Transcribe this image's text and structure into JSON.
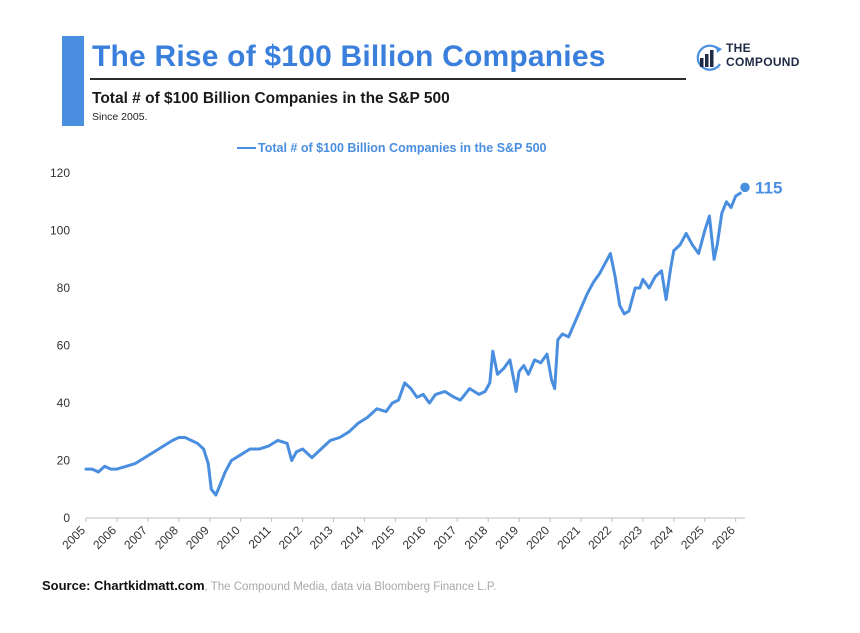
{
  "header": {
    "title": "The Rise of $100 Billion Companies",
    "subtitle": "Total # of $100 Billion Companies in the S&P 500",
    "since": "Since 2005."
  },
  "logo": {
    "line1": "THE",
    "line2": "COMPOUND",
    "icon": "compound-bars-icon"
  },
  "source": {
    "bold": "Source: Chartkidmatt.com",
    "rest": ", The Compound Media, data via Bloomberg Finance L.P."
  },
  "colors": {
    "series": "#4a8ee0",
    "title": "#3a7fdc",
    "axis": "#333333"
  },
  "chart_data": {
    "type": "line",
    "title": "Total # of $100 Billion Companies in the S&P 500",
    "legend": "top-center",
    "grid": false,
    "xlim": [
      2005.0,
      2026.3
    ],
    "ylim": [
      0,
      120
    ],
    "yticks": [
      0,
      20,
      40,
      60,
      80,
      100,
      120
    ],
    "xticks": [
      "2005",
      "2006",
      "2007",
      "2008",
      "2009",
      "2010",
      "2011",
      "2012",
      "2013",
      "2014",
      "2015",
      "2016",
      "2017",
      "2018",
      "2019",
      "2020",
      "2021",
      "2022",
      "2023",
      "2024",
      "2025",
      "2026"
    ],
    "end_label": "115",
    "series": [
      {
        "name": "Total # of $100 Billion Companies in the S&P 500",
        "x": [
          2005.0,
          2005.2,
          2005.4,
          2005.6,
          2005.8,
          2006.0,
          2006.3,
          2006.6,
          2006.9,
          2007.2,
          2007.5,
          2007.8,
          2008.0,
          2008.2,
          2008.4,
          2008.6,
          2008.8,
          2008.95,
          2009.05,
          2009.2,
          2009.35,
          2009.5,
          2009.7,
          2010.0,
          2010.3,
          2010.6,
          2010.9,
          2011.2,
          2011.5,
          2011.65,
          2011.8,
          2012.0,
          2012.3,
          2012.6,
          2012.9,
          2013.2,
          2013.5,
          2013.8,
          2014.1,
          2014.4,
          2014.7,
          2014.9,
          2015.1,
          2015.3,
          2015.5,
          2015.7,
          2015.9,
          2016.1,
          2016.3,
          2016.6,
          2016.9,
          2017.1,
          2017.4,
          2017.7,
          2017.9,
          2018.05,
          2018.15,
          2018.3,
          2018.5,
          2018.7,
          2018.9,
          2019.0,
          2019.15,
          2019.3,
          2019.5,
          2019.7,
          2019.9,
          2020.05,
          2020.15,
          2020.25,
          2020.4,
          2020.6,
          2020.8,
          2021.0,
          2021.2,
          2021.4,
          2021.6,
          2021.8,
          2021.95,
          2022.1,
          2022.25,
          2022.4,
          2022.55,
          2022.75,
          2022.9,
          2023.0,
          2023.2,
          2023.4,
          2023.6,
          2023.75,
          2023.9,
          2024.0,
          2024.2,
          2024.4,
          2024.6,
          2024.8,
          2025.0,
          2025.15,
          2025.3,
          2025.4,
          2025.55,
          2025.7,
          2025.85,
          2026.0,
          2026.15,
          2026.3
        ],
        "values": [
          17,
          17,
          16,
          18,
          17,
          17,
          18,
          19,
          21,
          23,
          25,
          27,
          28,
          28,
          27,
          26,
          24,
          19,
          10,
          8,
          12,
          16,
          20,
          22,
          24,
          24,
          25,
          27,
          26,
          20,
          23,
          24,
          21,
          24,
          27,
          28,
          30,
          33,
          35,
          38,
          37,
          40,
          41,
          47,
          45,
          42,
          43,
          40,
          43,
          44,
          42,
          41,
          45,
          43,
          44,
          47,
          58,
          50,
          52,
          55,
          44,
          51,
          53,
          50,
          55,
          54,
          57,
          48,
          45,
          62,
          64,
          63,
          68,
          73,
          78,
          82,
          85,
          89,
          92,
          84,
          74,
          71,
          72,
          80,
          80,
          83,
          80,
          84,
          86,
          76,
          87,
          93,
          95,
          99,
          95,
          92,
          100,
          105,
          90,
          95,
          106,
          110,
          108,
          112,
          113,
          115
        ]
      }
    ]
  }
}
